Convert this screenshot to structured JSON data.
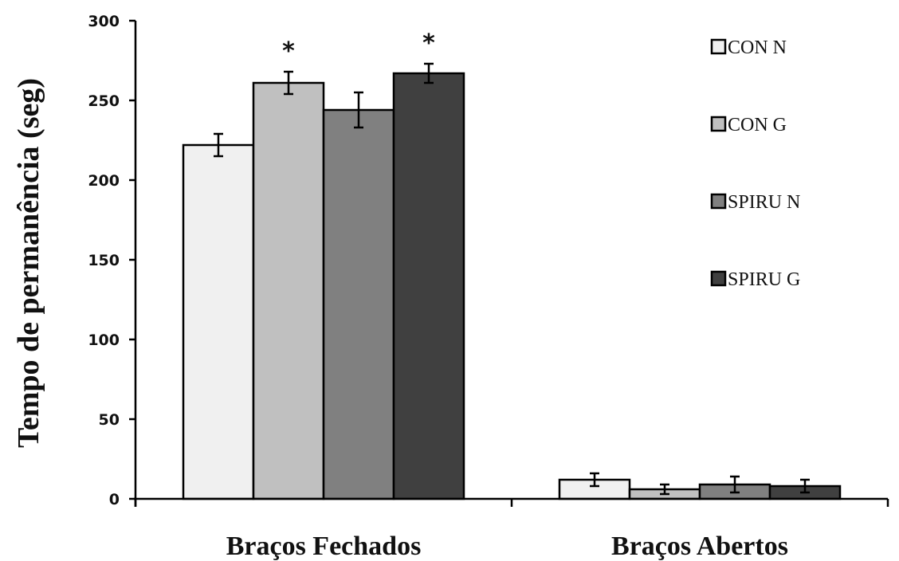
{
  "chart_data": {
    "type": "bar",
    "categories": [
      "Braços Fechados",
      "Braços Abertos"
    ],
    "ylabel": "Tempo de permanência (seg)",
    "ylim": [
      0,
      300
    ],
    "yticks": [
      "0",
      "50",
      "100",
      "150",
      "200",
      "250",
      "300"
    ],
    "legend_position": "top-right",
    "grid": false,
    "series": [
      {
        "name": "CON N",
        "color": "#f0f0f0",
        "values": [
          222,
          12
        ],
        "errors": [
          7,
          4
        ]
      },
      {
        "name": "CON G",
        "color": "#c0c0c0",
        "values": [
          261,
          6
        ],
        "errors": [
          7,
          3
        ]
      },
      {
        "name": "SPIRU N",
        "color": "#808080",
        "values": [
          244,
          9
        ],
        "errors": [
          11,
          5
        ]
      },
      {
        "name": "SPIRU G",
        "color": "#404040",
        "values": [
          267,
          8
        ],
        "errors": [
          6,
          4
        ]
      }
    ],
    "annotations": [
      {
        "text": "*",
        "series": 1,
        "category": 0
      },
      {
        "text": "*",
        "series": 3,
        "category": 0
      }
    ]
  }
}
